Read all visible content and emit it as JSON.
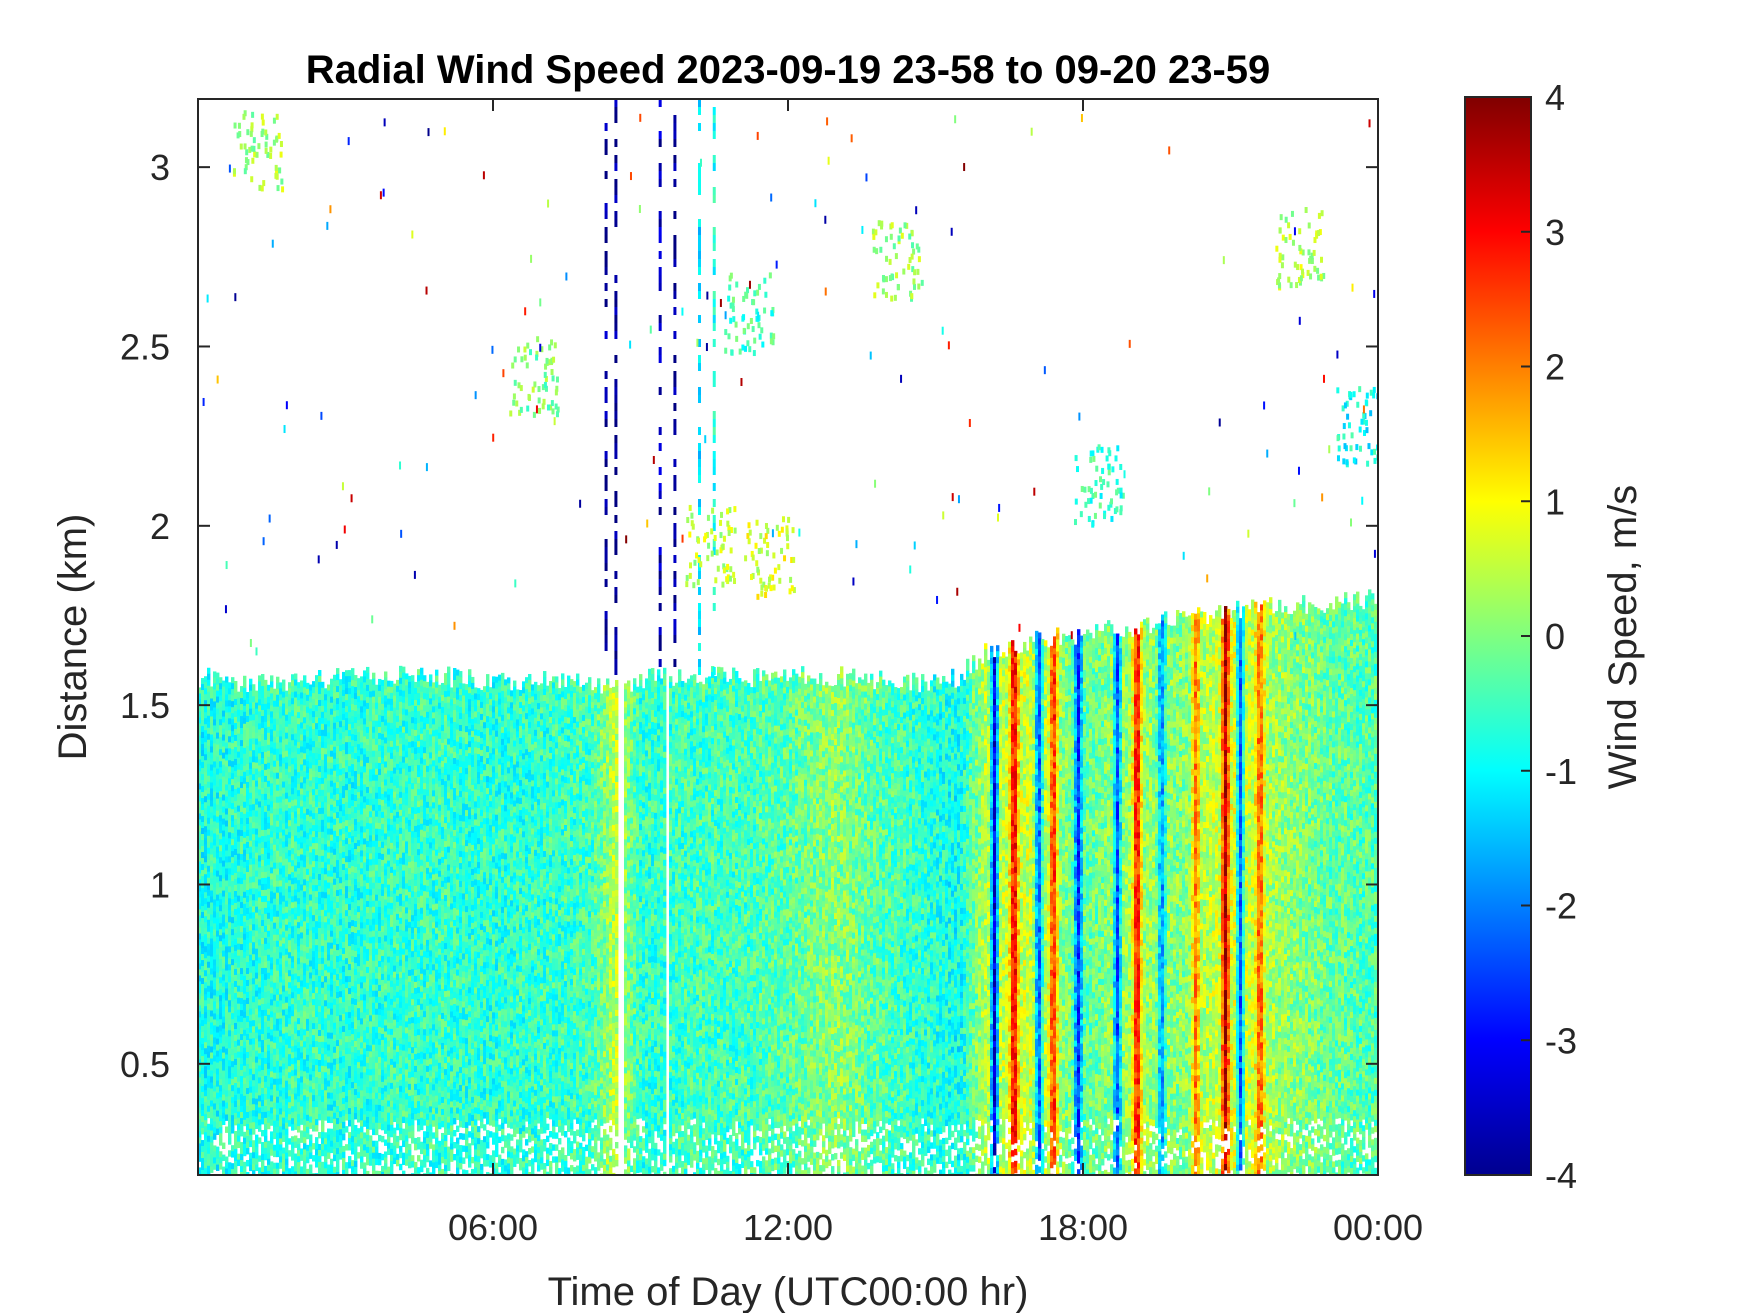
{
  "chart_data": {
    "type": "heatmap",
    "title": "Radial Wind Speed 2023-09-19 23-58 to 09-20 23-59",
    "xlabel": "Time of Day (UTC00:00 hr)",
    "ylabel": "Distance (km)",
    "colorbar_label": "Wind Speed, m/s",
    "xlim": [
      0,
      24
    ],
    "ylim": [
      0.19,
      3.19
    ],
    "clim": [
      -4,
      4
    ],
    "colormap": "jet",
    "x_ticks": [
      {
        "value": 6,
        "label": "06:00"
      },
      {
        "value": 12,
        "label": "12:00"
      },
      {
        "value": 18,
        "label": "18:00"
      },
      {
        "value": 24,
        "label": "00:00"
      }
    ],
    "y_ticks": [
      {
        "value": 0.5,
        "label": "0.5"
      },
      {
        "value": 1,
        "label": "1"
      },
      {
        "value": 1.5,
        "label": "1.5"
      },
      {
        "value": 2,
        "label": "2"
      },
      {
        "value": 2.5,
        "label": "2.5"
      },
      {
        "value": 3,
        "label": "3"
      }
    ],
    "c_ticks": [
      {
        "value": 4,
        "label": "4"
      },
      {
        "value": 3,
        "label": "3"
      },
      {
        "value": 2,
        "label": "2"
      },
      {
        "value": 1,
        "label": "1"
      },
      {
        "value": 0,
        "label": "0"
      },
      {
        "value": -1,
        "label": "-1"
      },
      {
        "value": -2,
        "label": "-2"
      },
      {
        "value": -3,
        "label": "-3"
      },
      {
        "value": -4,
        "label": "-4"
      }
    ],
    "time_bins_hr": [
      0,
      1,
      2,
      3,
      4,
      5,
      6,
      7,
      8,
      8.5,
      9,
      9.5,
      10,
      11,
      12,
      13,
      14,
      15,
      15.5,
      16,
      17,
      18,
      19,
      20,
      21,
      22,
      23,
      24
    ],
    "top_of_signal_km": [
      1.58,
      1.56,
      1.57,
      1.58,
      1.58,
      1.58,
      1.57,
      1.57,
      1.56,
      1.55,
      1.57,
      1.58,
      1.58,
      1.58,
      1.58,
      1.58,
      1.57,
      1.56,
      1.58,
      1.65,
      1.68,
      1.7,
      1.72,
      1.74,
      1.77,
      1.78,
      1.78,
      1.8
    ],
    "mean_speed_ms": [
      -0.8,
      -0.7,
      -0.6,
      -0.7,
      -0.6,
      -0.6,
      -0.7,
      -0.6,
      -0.5,
      0.5,
      -0.6,
      -0.6,
      -0.5,
      -0.5,
      -0.3,
      0.1,
      -0.4,
      -0.7,
      -0.9,
      0.4,
      0.6,
      -0.3,
      0.3,
      0.0,
      0.8,
      0.2,
      -0.2,
      -0.4
    ],
    "streak_positions_hr": [
      16.2,
      16.6,
      17.1,
      17.4,
      17.9,
      18.7,
      19.1,
      19.6,
      20.3,
      20.9,
      21.2,
      21.6
    ],
    "streak_speeds_ms": [
      -3.2,
      3.5,
      -2.5,
      3.0,
      -2.8,
      -2.4,
      3.4,
      -2.0,
      2.2,
      3.6,
      -2.3,
      2.6
    ],
    "sparse_columns_upper_hr": [
      8.3,
      8.5,
      9.4,
      9.7,
      10.2,
      10.5
    ],
    "sparse_columns_speed_ms": [
      -3.8,
      -3.9,
      -3.6,
      -3.8,
      -1.2,
      -0.8
    ]
  }
}
